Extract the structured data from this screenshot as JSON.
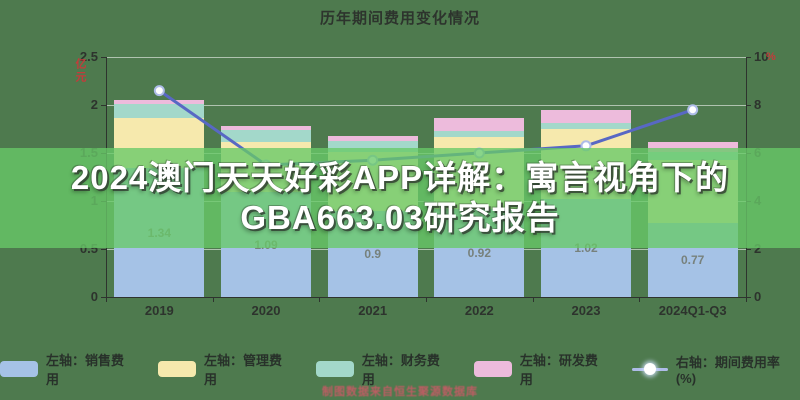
{
  "title": "历年期间费用变化情况",
  "banner": {
    "text": "2024澳门天天好彩APP详解：寓言视角下的GBA663.03研究报告"
  },
  "watermark": "制图数据来自恒生聚源数据库",
  "axes": {
    "left_unit": "亿元",
    "right_unit": "%",
    "left_tick_labels": [
      "2.5",
      "2",
      "1.5",
      "1",
      "0.5",
      "0"
    ],
    "right_tick_labels": [
      "10",
      "8",
      "6",
      "4",
      "2",
      "0"
    ]
  },
  "chart_data": {
    "type": "bar",
    "subtype": "stacked-bars-with-line",
    "categories": [
      "2019",
      "2020",
      "2021",
      "2022",
      "2023",
      "2024Q1-Q3"
    ],
    "series": [
      {
        "name": "左轴：销售费用",
        "type": "bar",
        "axis": "left",
        "color": "#a5c2e6",
        "values": [
          1.34,
          1.09,
          0.9,
          0.92,
          1.02,
          0.77
        ]
      },
      {
        "name": "左轴：管理费用",
        "type": "bar",
        "axis": "left",
        "color": "#f6e9ad",
        "values": [
          0.52,
          0.52,
          0.61,
          0.75,
          0.73,
          0.66
        ]
      },
      {
        "name": "左轴：财务费用",
        "type": "bar",
        "axis": "left",
        "color": "#a3d8ca",
        "values": [
          0.15,
          0.13,
          0.11,
          0.06,
          0.06,
          0.08
        ]
      },
      {
        "name": "左轴：研发费用",
        "type": "bar",
        "axis": "left",
        "color": "#edbbdc",
        "values": [
          0.04,
          0.04,
          0.06,
          0.13,
          0.14,
          0.1
        ]
      },
      {
        "name": "右轴：期间费用率(%)",
        "type": "line",
        "axis": "right",
        "color": "#5868c4",
        "values": [
          8.6,
          5.5,
          5.7,
          6.0,
          6.3,
          7.8
        ]
      }
    ],
    "bar_value_labels": [
      "1.34",
      "1.09",
      "0.9",
      "0.92",
      "1.02",
      "0.77"
    ],
    "left_axis": {
      "min": 0,
      "max": 2.5,
      "step": 0.5
    },
    "right_axis": {
      "min": 0,
      "max": 10,
      "step": 2
    },
    "grid": true,
    "legend_position": "bottom"
  },
  "legend": {
    "items": [
      {
        "label": "左轴：销售费用",
        "color": "#a5c2e6",
        "icon": "swatch"
      },
      {
        "label": "左轴：管理费用",
        "color": "#f6e9ad",
        "icon": "swatch"
      },
      {
        "label": "左轴：财务费用",
        "color": "#a3d8ca",
        "icon": "swatch"
      },
      {
        "label": "左轴：研发费用",
        "color": "#edbbdc",
        "icon": "swatch"
      },
      {
        "label": "右轴：期间费用率(%)",
        "color": "#5868c4",
        "icon": "line-dot"
      }
    ]
  }
}
